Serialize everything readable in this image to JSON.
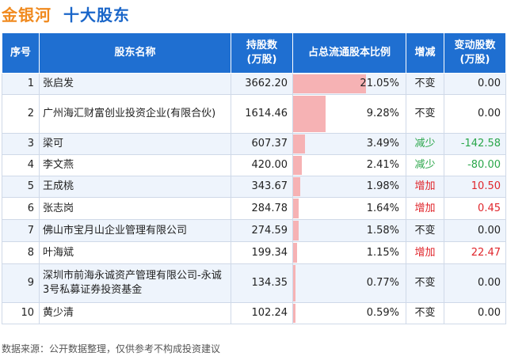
{
  "header": {
    "company": "金银河",
    "subtitle": "十大股东"
  },
  "table": {
    "columns": [
      "序号",
      "股东名称",
      "持股数\n(万股)",
      "占总流通股本比例",
      "增减",
      "变动股数\n(万股)"
    ],
    "rows": [
      {
        "idx": "1",
        "name": "张启发",
        "shares": "3662.20",
        "ratio": "21.05%",
        "ratio_value": 21.05,
        "change": "不变",
        "change_type": "same",
        "delta": "0.00"
      },
      {
        "idx": "2",
        "name": "广州海汇财富创业投资企业(有限合伙)",
        "shares": "1614.46",
        "ratio": "9.28%",
        "ratio_value": 9.28,
        "change": "不变",
        "change_type": "same",
        "delta": "0.00"
      },
      {
        "idx": "3",
        "name": "梁可",
        "shares": "607.37",
        "ratio": "3.49%",
        "ratio_value": 3.49,
        "change": "减少",
        "change_type": "dec",
        "delta": "-142.58"
      },
      {
        "idx": "4",
        "name": "李文燕",
        "shares": "420.00",
        "ratio": "2.41%",
        "ratio_value": 2.41,
        "change": "减少",
        "change_type": "dec",
        "delta": "-80.00"
      },
      {
        "idx": "5",
        "name": "王成桃",
        "shares": "343.67",
        "ratio": "1.98%",
        "ratio_value": 1.98,
        "change": "增加",
        "change_type": "inc",
        "delta": "10.50"
      },
      {
        "idx": "6",
        "name": "张志岗",
        "shares": "284.78",
        "ratio": "1.64%",
        "ratio_value": 1.64,
        "change": "增加",
        "change_type": "inc",
        "delta": "0.45"
      },
      {
        "idx": "7",
        "name": "佛山市宝月山企业管理有限公司",
        "shares": "274.59",
        "ratio": "1.58%",
        "ratio_value": 1.58,
        "change": "不变",
        "change_type": "same",
        "delta": "0.00"
      },
      {
        "idx": "8",
        "name": "叶海斌",
        "shares": "199.34",
        "ratio": "1.15%",
        "ratio_value": 1.15,
        "change": "增加",
        "change_type": "inc",
        "delta": "22.47"
      },
      {
        "idx": "9",
        "name": "深圳市前海永诚资产管理有限公司-永诚3号私募证券投资基金",
        "shares": "134.35",
        "ratio": "0.77%",
        "ratio_value": 0.77,
        "change": "不变",
        "change_type": "same",
        "delta": "0.00"
      },
      {
        "idx": "10",
        "name": "黄少清",
        "shares": "102.24",
        "ratio": "0.59%",
        "ratio_value": 0.59,
        "change": "不变",
        "change_type": "same",
        "delta": "0.00"
      }
    ]
  },
  "footer": {
    "source": "数据来源：公开数据整理，仅供参考不构成投资建议"
  },
  "colors": {
    "header_bg": "#1f6fd1",
    "increase": "#e0262c",
    "decrease": "#2aa64a",
    "bar": "#f5aeb0",
    "title_orange": "#f08a1f",
    "title_blue": "#1a66c9"
  }
}
